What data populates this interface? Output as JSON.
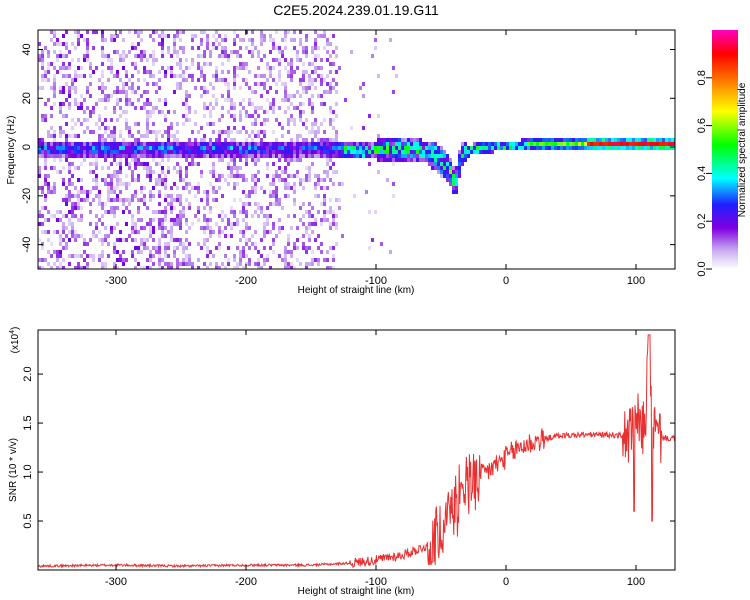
{
  "title": "C2E5.2024.239.01.19.G11",
  "chart_data": [
    {
      "type": "heatmap",
      "xlabel": "Height of straight line (km)",
      "ylabel": "Frequency (Hz)",
      "xlim": [
        -360,
        130
      ],
      "ylim": [
        -50,
        48
      ],
      "xticks": [
        "-300",
        "-200",
        "-100",
        "0",
        "100"
      ],
      "xtick_values": [
        -300,
        -200,
        -100,
        0,
        100
      ],
      "yticks": [
        "40",
        "20",
        "0",
        "-20",
        "-40"
      ],
      "ytick_values": [
        40,
        20,
        0,
        -20,
        -40
      ],
      "colorbar": {
        "label": "Normalized spectral amplitude",
        "range": [
          0,
          1
        ],
        "ticks": [
          "0.0",
          "0.2",
          "0.4",
          "0.6",
          "0.8"
        ],
        "tick_values": [
          0,
          0.2,
          0.4,
          0.6,
          0.8
        ],
        "colormap": [
          "#ffffff",
          "#c8a8f0",
          "#8000e0",
          "#2020ff",
          "#00ffff",
          "#00ff00",
          "#ffff00",
          "#ff8000",
          "#ff0000",
          "#ff00c0"
        ]
      },
      "ridge": {
        "x": [
          -360,
          -300,
          -200,
          -150,
          -130,
          -110,
          -90,
          -70,
          -55,
          -45,
          -40,
          -35,
          -25,
          -10,
          0,
          20,
          50,
          100,
          130
        ],
        "y": [
          0,
          0,
          0,
          0,
          0,
          -1,
          0,
          0,
          -3,
          -8,
          -14,
          -2,
          0,
          1,
          1,
          2,
          2,
          2,
          2
        ]
      }
    },
    {
      "type": "line",
      "xlabel": "Height of straight line (km)",
      "ylabel": "SNR (10 * v/v)",
      "y_scale_label": "(x10",
      "y_scale_exp": "4",
      "y_scale_close": ")",
      "xlim": [
        -360,
        130
      ],
      "ylim": [
        0,
        2.45
      ],
      "xticks": [
        "-300",
        "-200",
        "-100",
        "0",
        "100"
      ],
      "xtick_values": [
        -300,
        -200,
        -100,
        0,
        100
      ],
      "yticks": [
        "0.5",
        "1.0",
        "1.5",
        "2.0"
      ],
      "ytick_values": [
        0.5,
        1.0,
        1.5,
        2.0
      ],
      "series": [
        {
          "color": "#e83030",
          "x": [
            -360,
            -300,
            -250,
            -200,
            -150,
            -120,
            -100,
            -90,
            -80,
            -60,
            -50,
            -40,
            -30,
            -25,
            -22,
            -20,
            -10,
            0,
            10,
            20,
            30,
            40,
            60,
            80,
            90,
            95,
            100,
            105,
            108,
            110,
            112,
            115,
            120,
            130
          ],
          "y": [
            0.04,
            0.05,
            0.04,
            0.05,
            0.05,
            0.07,
            0.1,
            0.13,
            0.15,
            0.25,
            0.45,
            0.7,
            0.9,
            0.95,
            0.9,
            0.95,
            1.05,
            1.15,
            1.25,
            1.3,
            1.34,
            1.37,
            1.38,
            1.38,
            1.37,
            1.36,
            1.55,
            1.4,
            1.7,
            2.5,
            1.6,
            1.38,
            1.35,
            1.34
          ]
        }
      ]
    }
  ]
}
